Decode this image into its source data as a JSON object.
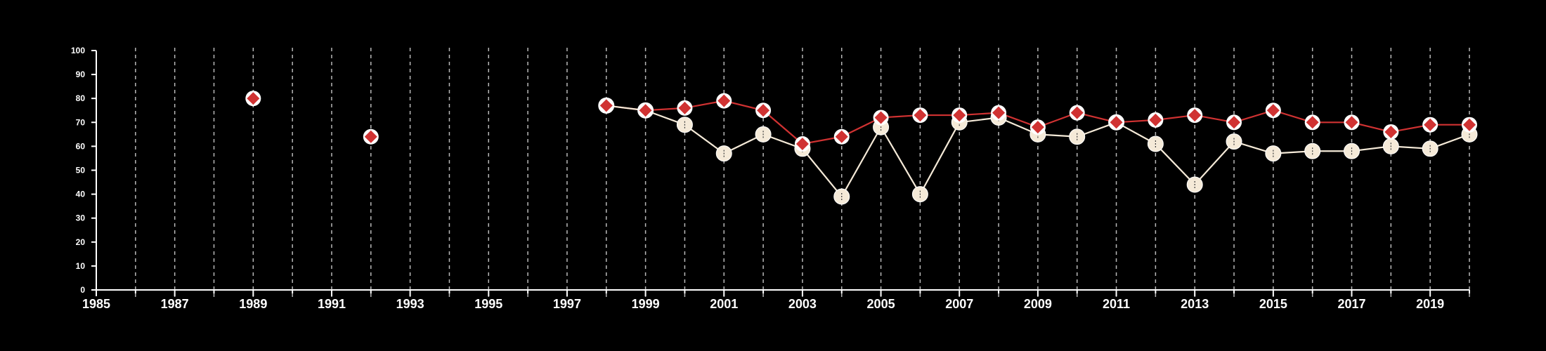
{
  "chart_data": {
    "type": "line",
    "title": "",
    "xlabel": "",
    "ylabel": "",
    "xlim": [
      1985,
      2020
    ],
    "ylim": [
      0,
      100
    ],
    "x_ticks": [
      1985,
      1987,
      1989,
      1991,
      1993,
      1995,
      1997,
      1999,
      2001,
      2003,
      2005,
      2007,
      2009,
      2011,
      2013,
      2015,
      2017,
      2019
    ],
    "y_ticks": [
      0,
      10,
      20,
      30,
      40,
      50,
      60,
      70,
      80,
      90,
      100
    ],
    "grid": "vertical dashed at every year",
    "background_color": "#000000",
    "series": [
      {
        "marker": "diamond",
        "color": "#d03232",
        "points": [
          [
            1989,
            80
          ],
          [
            1992,
            64
          ],
          [
            1998,
            77
          ],
          [
            1999,
            75
          ],
          [
            2000,
            76
          ],
          [
            2001,
            79
          ],
          [
            2002,
            75
          ],
          [
            2003,
            61
          ],
          [
            2004,
            64
          ],
          [
            2005,
            72
          ],
          [
            2006,
            73
          ],
          [
            2007,
            73
          ],
          [
            2008,
            74
          ],
          [
            2009,
            68
          ],
          [
            2010,
            74
          ],
          [
            2011,
            70
          ],
          [
            2012,
            71
          ],
          [
            2013,
            73
          ],
          [
            2014,
            70
          ],
          [
            2015,
            75
          ],
          [
            2016,
            70
          ],
          [
            2017,
            70
          ],
          [
            2018,
            66
          ],
          [
            2019,
            69
          ],
          [
            2020,
            69
          ]
        ]
      },
      {
        "marker": "circle",
        "color": "#f5ead8",
        "points": [
          [
            1998,
            77
          ],
          [
            1999,
            75
          ],
          [
            2000,
            69
          ],
          [
            2001,
            57
          ],
          [
            2002,
            65
          ],
          [
            2003,
            59
          ],
          [
            2004,
            39
          ],
          [
            2005,
            68
          ],
          [
            2006,
            40
          ],
          [
            2007,
            70
          ],
          [
            2008,
            72
          ],
          [
            2009,
            65
          ],
          [
            2010,
            64
          ],
          [
            2011,
            70
          ],
          [
            2012,
            61
          ],
          [
            2013,
            44
          ],
          [
            2014,
            62
          ],
          [
            2015,
            57
          ],
          [
            2016,
            58
          ],
          [
            2017,
            58
          ],
          [
            2018,
            60
          ],
          [
            2019,
            59
          ],
          [
            2020,
            65
          ]
        ]
      }
    ]
  }
}
